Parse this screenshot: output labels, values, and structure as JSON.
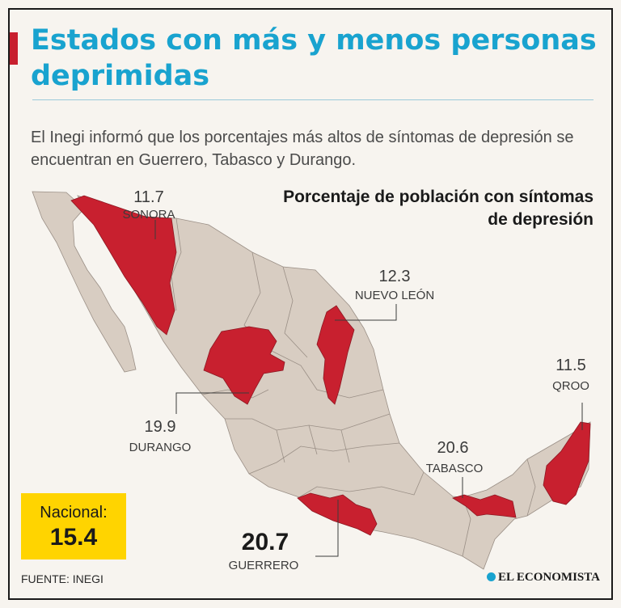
{
  "title": "Estados con más y menos personas deprimidas",
  "subtitle": "El Inegi informó que los porcentajes más altos de síntomas de depresión se encuentran en Guerrero, Tabasco y Durango.",
  "legend_title": "Porcentaje de población con síntomas de depresión",
  "states": {
    "sonora": {
      "name": "SONORA",
      "value": "11.7"
    },
    "nuevo_leon": {
      "name": "NUEVO LEÓN",
      "value": "12.3"
    },
    "durango": {
      "name": "DURANGO",
      "value": "19.9"
    },
    "qroo": {
      "name": "QROO",
      "value": "11.5"
    },
    "tabasco": {
      "name": "TABASCO",
      "value": "20.6"
    },
    "guerrero": {
      "name": "GUERRERO",
      "value": "20.7"
    }
  },
  "nacional": {
    "label": "Nacional:",
    "value": "15.4"
  },
  "source": "FUENTE: INEGI",
  "brand": "EL ECONOMISTA",
  "colors": {
    "highlight": "#c8202f",
    "base": "#d8cdc2",
    "title": "#19a3cf",
    "badge": "#ffd400"
  }
}
